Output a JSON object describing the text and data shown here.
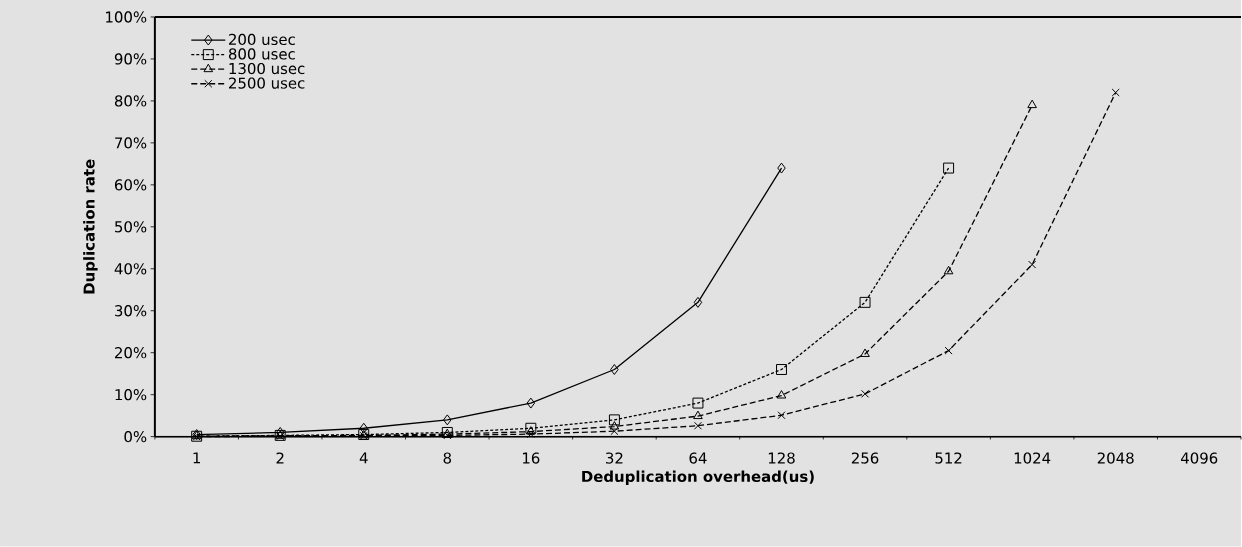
{
  "chart_data": {
    "type": "line",
    "xlabel": "Deduplication overhead(us)",
    "ylabel": "Duplication rate",
    "categories": [
      "1",
      "2",
      "4",
      "8",
      "16",
      "32",
      "64",
      "128",
      "256",
      "512",
      "1024",
      "2048",
      "4096"
    ],
    "series": [
      {
        "name": "200 usec",
        "color": "#000000",
        "marker": "diamond",
        "line_style": "solid",
        "values": [
          0.5,
          1,
          2,
          4,
          8,
          16,
          32,
          64,
          null,
          null,
          null,
          null,
          null
        ]
      },
      {
        "name": "800 usec",
        "color": "#000000",
        "marker": "square",
        "line_style": "dotted",
        "values": [
          0.1,
          0.3,
          0.5,
          1,
          2,
          4,
          8,
          16,
          32,
          64,
          null,
          null,
          null
        ]
      },
      {
        "name": "1300 usec",
        "color": "#000000",
        "marker": "triangle",
        "line_style": "dashed",
        "values": [
          0.1,
          0.2,
          0.3,
          0.6,
          1.2,
          2.4,
          4.9,
          9.8,
          19.7,
          39.4,
          79,
          null,
          null
        ]
      },
      {
        "name": "2500 usec",
        "color": "#000000",
        "marker": "cross",
        "line_style": "dashed",
        "values": [
          0,
          0.1,
          0.2,
          0.3,
          0.6,
          1.3,
          2.6,
          5.1,
          10.2,
          20.5,
          41,
          82,
          null
        ]
      }
    ],
    "ylim": [
      0,
      100
    ],
    "yticks": [
      {
        "value": 0,
        "label": "0%"
      },
      {
        "value": 10,
        "label": "10%"
      },
      {
        "value": 20,
        "label": "20%"
      },
      {
        "value": 30,
        "label": "30%"
      },
      {
        "value": 40,
        "label": "40%"
      },
      {
        "value": 50,
        "label": "50%"
      },
      {
        "value": 60,
        "label": "60%"
      },
      {
        "value": 70,
        "label": "70%"
      },
      {
        "value": 80,
        "label": "80%"
      },
      {
        "value": 90,
        "label": "90%"
      },
      {
        "value": 100,
        "label": "100%"
      }
    ],
    "grid": false,
    "legend": "top left"
  }
}
